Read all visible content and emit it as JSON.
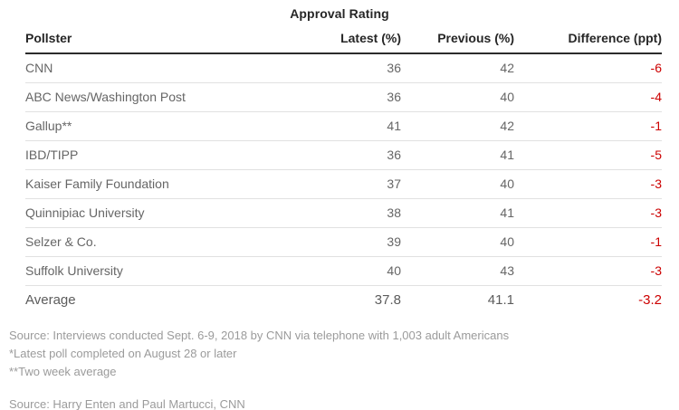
{
  "page": {
    "title": "Approval Rating"
  },
  "table": {
    "columns": [
      "Pollster",
      "Latest (%)",
      "Previous (%)",
      "Difference (ppt)"
    ],
    "rows": [
      {
        "pollster": "CNN",
        "latest": "36",
        "previous": "42",
        "difference": "-6",
        "emphasis": false
      },
      {
        "pollster": "ABC News/Washington Post",
        "latest": "36",
        "previous": "40",
        "difference": "-4",
        "emphasis": false
      },
      {
        "pollster": "Gallup**",
        "latest": "41",
        "previous": "42",
        "difference": "-1",
        "emphasis": false
      },
      {
        "pollster": "IBD/TIPP",
        "latest": "36",
        "previous": "41",
        "difference": "-5",
        "emphasis": false
      },
      {
        "pollster": "Kaiser Family Foundation",
        "latest": "37",
        "previous": "40",
        "difference": "-3",
        "emphasis": false
      },
      {
        "pollster": "Quinnipiac University",
        "latest": "38",
        "previous": "41",
        "difference": "-3",
        "emphasis": false
      },
      {
        "pollster": "Selzer & Co.",
        "latest": "39",
        "previous": "40",
        "difference": "-1",
        "emphasis": false
      },
      {
        "pollster": "Suffolk University",
        "latest": "40",
        "previous": "43",
        "difference": "-3",
        "emphasis": false
      },
      {
        "pollster": "Average",
        "latest": "37.8",
        "previous": "41.1",
        "difference": "-3.2",
        "emphasis": true
      }
    ]
  },
  "footnotes": {
    "lines": [
      "Source: Interviews conducted Sept. 6-9, 2018 by CNN via telephone with 1,003 adult Americans",
      "*Latest poll completed on August 28 or later",
      "**Two week average"
    ],
    "credit": "Source: Harry Enten and Paul Martucci, CNN"
  },
  "colors": {
    "title_text": "#262626",
    "header_text": "#262626",
    "header_rule": "#2b2b2b",
    "row_text": "#666666",
    "average_text": "#5c5c5c",
    "negative_value": "#cc0000",
    "row_separator": "#e1e1e1",
    "footnote_text": "#9b9b9b",
    "background": "#ffffff"
  },
  "chart_data": {
    "type": "table",
    "title": "Approval Rating",
    "columns": [
      "Pollster",
      "Latest (%)",
      "Previous (%)",
      "Difference (ppt)"
    ],
    "rows": [
      [
        "CNN",
        36,
        42,
        -6
      ],
      [
        "ABC News/Washington Post",
        36,
        40,
        -4
      ],
      [
        "Gallup**",
        41,
        42,
        -1
      ],
      [
        "IBD/TIPP",
        36,
        41,
        -5
      ],
      [
        "Kaiser Family Foundation",
        37,
        40,
        -3
      ],
      [
        "Quinnipiac University",
        38,
        41,
        -3
      ],
      [
        "Selzer & Co.",
        39,
        40,
        -1
      ],
      [
        "Suffolk University",
        40,
        43,
        -3
      ],
      [
        "Average",
        37.8,
        41.1,
        -3.2
      ]
    ],
    "notes": [
      "Source: Interviews conducted Sept. 6-9, 2018 by CNN via telephone with 1,003 adult Americans",
      "*Latest poll completed on August 28 or later",
      "**Two week average",
      "Source: Harry Enten and Paul Martucci, CNN"
    ],
    "layout": {
      "negative_values_colored_red": true,
      "numeric_columns_right_aligned": true
    }
  }
}
